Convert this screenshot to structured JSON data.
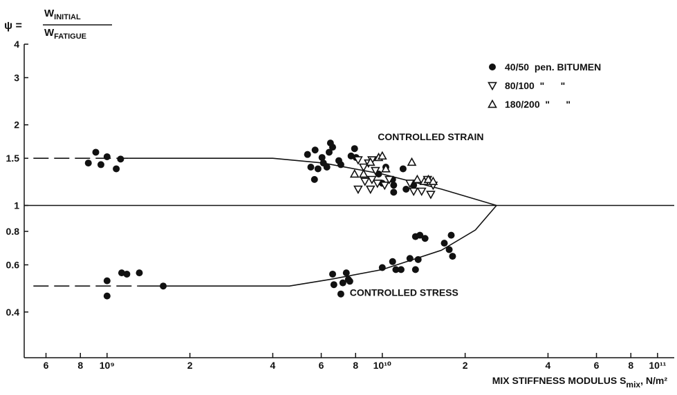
{
  "chart_data": {
    "type": "scatter",
    "ylabel": {
      "prefix": "ψ =",
      "num": "W",
      "num_sub": "INITIAL",
      "den": "W",
      "den_sub": "FATIGUE"
    },
    "xlabel": {
      "main": "MIX STIFFNESS MODULUS S",
      "sub": "mix",
      "unit": ", N/m²"
    },
    "log_x": true,
    "log_y": true,
    "xlim": [
      500000000,
      115000000000
    ],
    "ylim": [
      0.27,
      4
    ],
    "xticks": [
      {
        "value": 600000000,
        "label": "6"
      },
      {
        "value": 800000000,
        "label": "8"
      },
      {
        "value": 1000000000,
        "label": "10⁹"
      },
      {
        "value": 2000000000,
        "label": "2"
      },
      {
        "value": 4000000000,
        "label": "4"
      },
      {
        "value": 6000000000,
        "label": "6"
      },
      {
        "value": 8000000000,
        "label": "8"
      },
      {
        "value": 10000000000,
        "label": "10¹⁰"
      },
      {
        "value": 20000000000,
        "label": "2"
      },
      {
        "value": 40000000000,
        "label": "4"
      },
      {
        "value": 60000000000,
        "label": "6"
      },
      {
        "value": 80000000000,
        "label": "8"
      },
      {
        "value": 100000000000,
        "label": "10¹¹"
      }
    ],
    "yticks": [
      0.4,
      0.6,
      0.8,
      1,
      1.5,
      2,
      3,
      4
    ],
    "reference_line": 1,
    "annotations": [
      {
        "text": "CONTROLLED STRAIN",
        "x": 15000000000,
        "y": 1.75
      },
      {
        "text": "CONTROLLED STRESS",
        "x": 12000000000,
        "y": 0.46
      }
    ],
    "lines": [
      {
        "style": "dashed",
        "x": [
          540000000,
          1200000000
        ],
        "values": [
          1.5,
          1.5
        ]
      },
      {
        "style": "solid",
        "x": [
          1200000000,
          4000000000,
          6100000000,
          10000000000,
          16400000000,
          26000000000
        ],
        "values": [
          1.5,
          1.5,
          1.44,
          1.31,
          1.15,
          1.0
        ]
      },
      {
        "style": "dashed",
        "x": [
          540000000,
          1300000000
        ],
        "values": [
          0.5,
          0.5
        ]
      },
      {
        "style": "solid",
        "x": [
          1300000000,
          4600000000,
          6500000000,
          10000000000,
          16400000000,
          21800000000,
          26000000000
        ],
        "values": [
          0.5,
          0.5,
          0.53,
          0.576,
          0.68,
          0.81,
          1.0
        ]
      }
    ],
    "series": [
      {
        "name": "40/50  pen. BITUMEN",
        "marker": "circle",
        "color": "#111111",
        "x": [
          855000000,
          910000000,
          950000000,
          1000000000,
          1080000000,
          1120000000,
          5350000000,
          5700000000,
          5500000000,
          5840000000,
          5670000000,
          6040000000,
          6110000000,
          6290000000,
          6410000000,
          6480000000,
          6600000000,
          6950000000,
          7070000000,
          7700000000,
          7930000000,
          8030000000,
          9700000000,
          10000000000,
          10300000000,
          10900000000,
          11000000000,
          11000000000,
          11900000000,
          12200000000,
          13000000000,
          1000000000,
          1000000000,
          1130000000,
          1180000000,
          1310000000,
          1600000000,
          6600000000,
          6670000000,
          7070000000,
          7190000000,
          7400000000,
          7530000000,
          7620000000,
          10000000000,
          10900000000,
          11200000000,
          11700000000,
          12600000000,
          13200000000,
          13500000000,
          13200000000,
          13700000000,
          14300000000,
          16800000000,
          17800000000,
          17500000000,
          18000000000
        ],
        "values": [
          1.44,
          1.58,
          1.42,
          1.52,
          1.37,
          1.49,
          1.55,
          1.61,
          1.39,
          1.37,
          1.25,
          1.51,
          1.44,
          1.39,
          1.58,
          1.71,
          1.65,
          1.47,
          1.42,
          1.53,
          1.63,
          1.51,
          1.31,
          1.21,
          1.39,
          1.25,
          1.19,
          1.12,
          1.37,
          1.15,
          1.19,
          0.523,
          0.459,
          0.56,
          0.554,
          0.56,
          0.5,
          0.554,
          0.506,
          0.467,
          0.514,
          0.56,
          0.529,
          0.521,
          0.586,
          0.617,
          0.576,
          0.576,
          0.634,
          0.576,
          0.628,
          0.765,
          0.774,
          0.753,
          0.723,
          0.774,
          0.684,
          0.646
        ]
      },
      {
        "name": "80/100  \"      \"",
        "marker": "triangle-down",
        "color": "#111111",
        "x": [
          8170000000,
          8550000000,
          8910000000,
          9170000000,
          9440000000,
          8650000000,
          8170000000,
          9060000000,
          9600000000,
          10200000000,
          10600000000,
          12600000000,
          13000000000,
          13900000000,
          14600000000,
          15000000000,
          15300000000,
          9170000000
        ],
        "values": [
          1.48,
          1.39,
          1.44,
          1.48,
          1.35,
          1.23,
          1.15,
          1.15,
          1.21,
          1.19,
          1.25,
          1.21,
          1.13,
          1.13,
          1.25,
          1.1,
          1.19,
          1.25
        ]
      },
      {
        "name": "180/200  \"      \"",
        "marker": "triangle-up",
        "color": "#111111",
        "x": [
          7930000000,
          8550000000,
          9060000000,
          9700000000,
          10000000000,
          10300000000,
          12800000000,
          14200000000,
          14700000000,
          15300000000,
          13400000000
        ],
        "values": [
          1.31,
          1.31,
          1.45,
          1.51,
          1.53,
          1.37,
          1.45,
          1.23,
          1.25,
          1.23,
          1.25
        ]
      }
    ]
  }
}
